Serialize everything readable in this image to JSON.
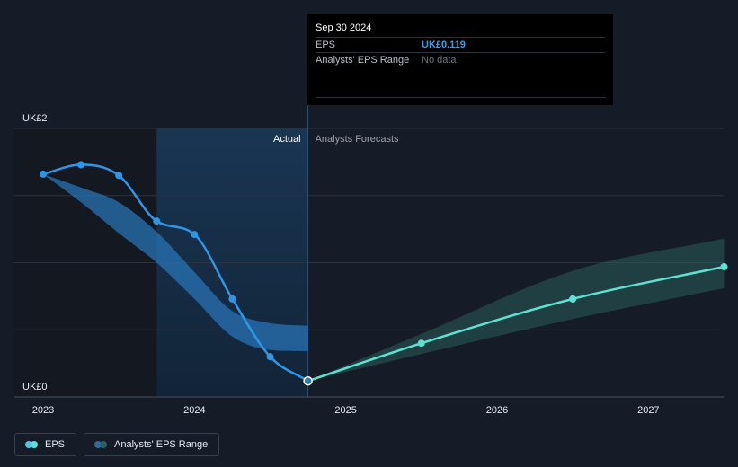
{
  "chart_data": {
    "type": "line",
    "currency_prefix": "UK£",
    "y_ticks": [
      "UK£2",
      "UK£0"
    ],
    "ylim": [
      0,
      2
    ],
    "x_ticks": [
      "2023",
      "2024",
      "2025",
      "2026",
      "2027"
    ],
    "xlim": [
      2023.0,
      2027.5
    ],
    "region_labels": {
      "actual": "Actual",
      "forecast": "Analysts Forecasts"
    },
    "actual_divider_x": 2024.75,
    "shade_start_x": 2023.75,
    "series": [
      {
        "name": "EPS",
        "color": "#2f96e6",
        "points": [
          {
            "x": 2023.0,
            "y": 1.66
          },
          {
            "x": 2023.25,
            "y": 1.73
          },
          {
            "x": 2023.5,
            "y": 1.65
          },
          {
            "x": 2023.75,
            "y": 1.31
          },
          {
            "x": 2024.0,
            "y": 1.21
          },
          {
            "x": 2024.25,
            "y": 0.73
          },
          {
            "x": 2024.5,
            "y": 0.3
          },
          {
            "x": 2024.75,
            "y": 0.119
          }
        ]
      },
      {
        "name": "EPS Forecast",
        "color": "#5ce1d3",
        "points": [
          {
            "x": 2024.75,
            "y": 0.119
          },
          {
            "x": 2025.5,
            "y": 0.4
          },
          {
            "x": 2026.5,
            "y": 0.73
          },
          {
            "x": 2027.5,
            "y": 0.97
          }
        ]
      }
    ],
    "ranges": [
      {
        "name": "Analysts' EPS Range (historical)",
        "color": "#2a78bd",
        "upper": [
          [
            2023.0,
            1.66
          ],
          [
            2023.25,
            1.56
          ],
          [
            2023.5,
            1.45
          ],
          [
            2023.75,
            1.23
          ],
          [
            2024.0,
            0.93
          ],
          [
            2024.25,
            0.64
          ],
          [
            2024.5,
            0.55
          ],
          [
            2024.75,
            0.53
          ]
        ],
        "lower": [
          [
            2023.0,
            1.66
          ],
          [
            2023.25,
            1.45
          ],
          [
            2023.5,
            1.22
          ],
          [
            2023.75,
            1.0
          ],
          [
            2024.0,
            0.73
          ],
          [
            2024.25,
            0.45
          ],
          [
            2024.5,
            0.35
          ],
          [
            2024.75,
            0.34
          ]
        ]
      },
      {
        "name": "Analysts' EPS Range (forecast)",
        "color": "#2a5d5a",
        "upper": [
          [
            2024.75,
            0.119
          ],
          [
            2025.5,
            0.47
          ],
          [
            2026.5,
            0.94
          ],
          [
            2027.5,
            1.18
          ]
        ],
        "lower": [
          [
            2024.75,
            0.119
          ],
          [
            2025.5,
            0.32
          ],
          [
            2026.5,
            0.58
          ],
          [
            2027.5,
            0.81
          ]
        ]
      }
    ],
    "grid": true,
    "legend": "bottom-left"
  },
  "tooltip": {
    "date": "Sep 30 2024",
    "rows": [
      {
        "label": "EPS",
        "value": "UK£0.119"
      },
      {
        "label": "Analysts' EPS Range",
        "value": "No data"
      }
    ]
  },
  "legend": {
    "items": [
      {
        "label": "EPS",
        "colors": [
          "#4fc3e8",
          "#5ce1d3"
        ]
      },
      {
        "label": "Analysts' EPS Range",
        "colors": [
          "#2b6d9e",
          "#2f5f5c"
        ]
      }
    ]
  }
}
